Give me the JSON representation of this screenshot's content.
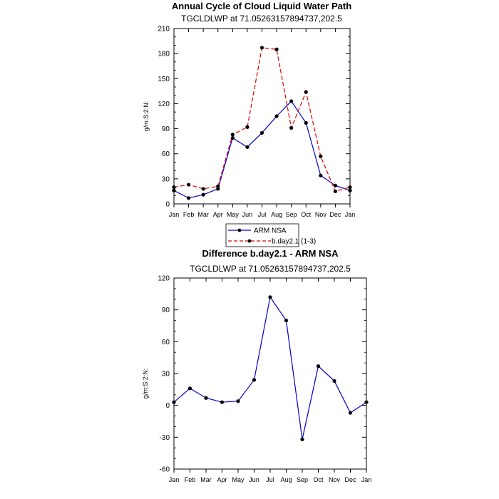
{
  "chart_data": [
    {
      "type": "line",
      "title": "Annual Cycle of Cloud Liquid Water Path",
      "subtitle": "TGCLDLWP at 71.05263157894737,202.5",
      "xlabel": "",
      "ylabel": "g/m:S:2:N:",
      "ylim": [
        0,
        210
      ],
      "yticks": [
        "0",
        "30",
        "60",
        "90",
        "120",
        "150",
        "180",
        "210"
      ],
      "categories": [
        "Jan",
        "Feb",
        "Mar",
        "Apr",
        "May",
        "Jun",
        "Jul",
        "Aug",
        "Sep",
        "Oct",
        "Nov",
        "Dec",
        "Jan"
      ],
      "series": [
        {
          "name": "ARM NSA",
          "color": "#0000cc",
          "dash": "solid",
          "values": [
            16,
            7,
            11,
            18,
            79,
            68,
            85,
            105,
            123,
            97,
            34,
            22,
            16
          ]
        },
        {
          "name": "b.day2.1 (1-3)",
          "color": "#dd0000",
          "dash": "dashed",
          "values": [
            20,
            23,
            18,
            21,
            83,
            92,
            187,
            185,
            91,
            134,
            57,
            15,
            20
          ]
        }
      ],
      "legend": "below"
    },
    {
      "type": "line",
      "title": "Difference b.day2.1 - ARM NSA",
      "subtitle": "TGCLDLWP at 71.05263157894737,202.5",
      "xlabel": "",
      "ylabel": "g/m:S:2:N:",
      "ylim": [
        -60,
        120
      ],
      "yticks": [
        "-60",
        "-30",
        "0",
        "30",
        "60",
        "90",
        "120"
      ],
      "categories": [
        "Jan",
        "Feb",
        "Mar",
        "Apr",
        "May",
        "Jun",
        "Jul",
        "Aug",
        "Sep",
        "Oct",
        "Nov",
        "Dec",
        "Jan"
      ],
      "series": [
        {
          "name": "Difference",
          "color": "#0000cc",
          "dash": "solid",
          "values": [
            3,
            16,
            7,
            3,
            4,
            24,
            102,
            80,
            -32,
            37,
            23,
            -7,
            3
          ]
        }
      ]
    }
  ]
}
